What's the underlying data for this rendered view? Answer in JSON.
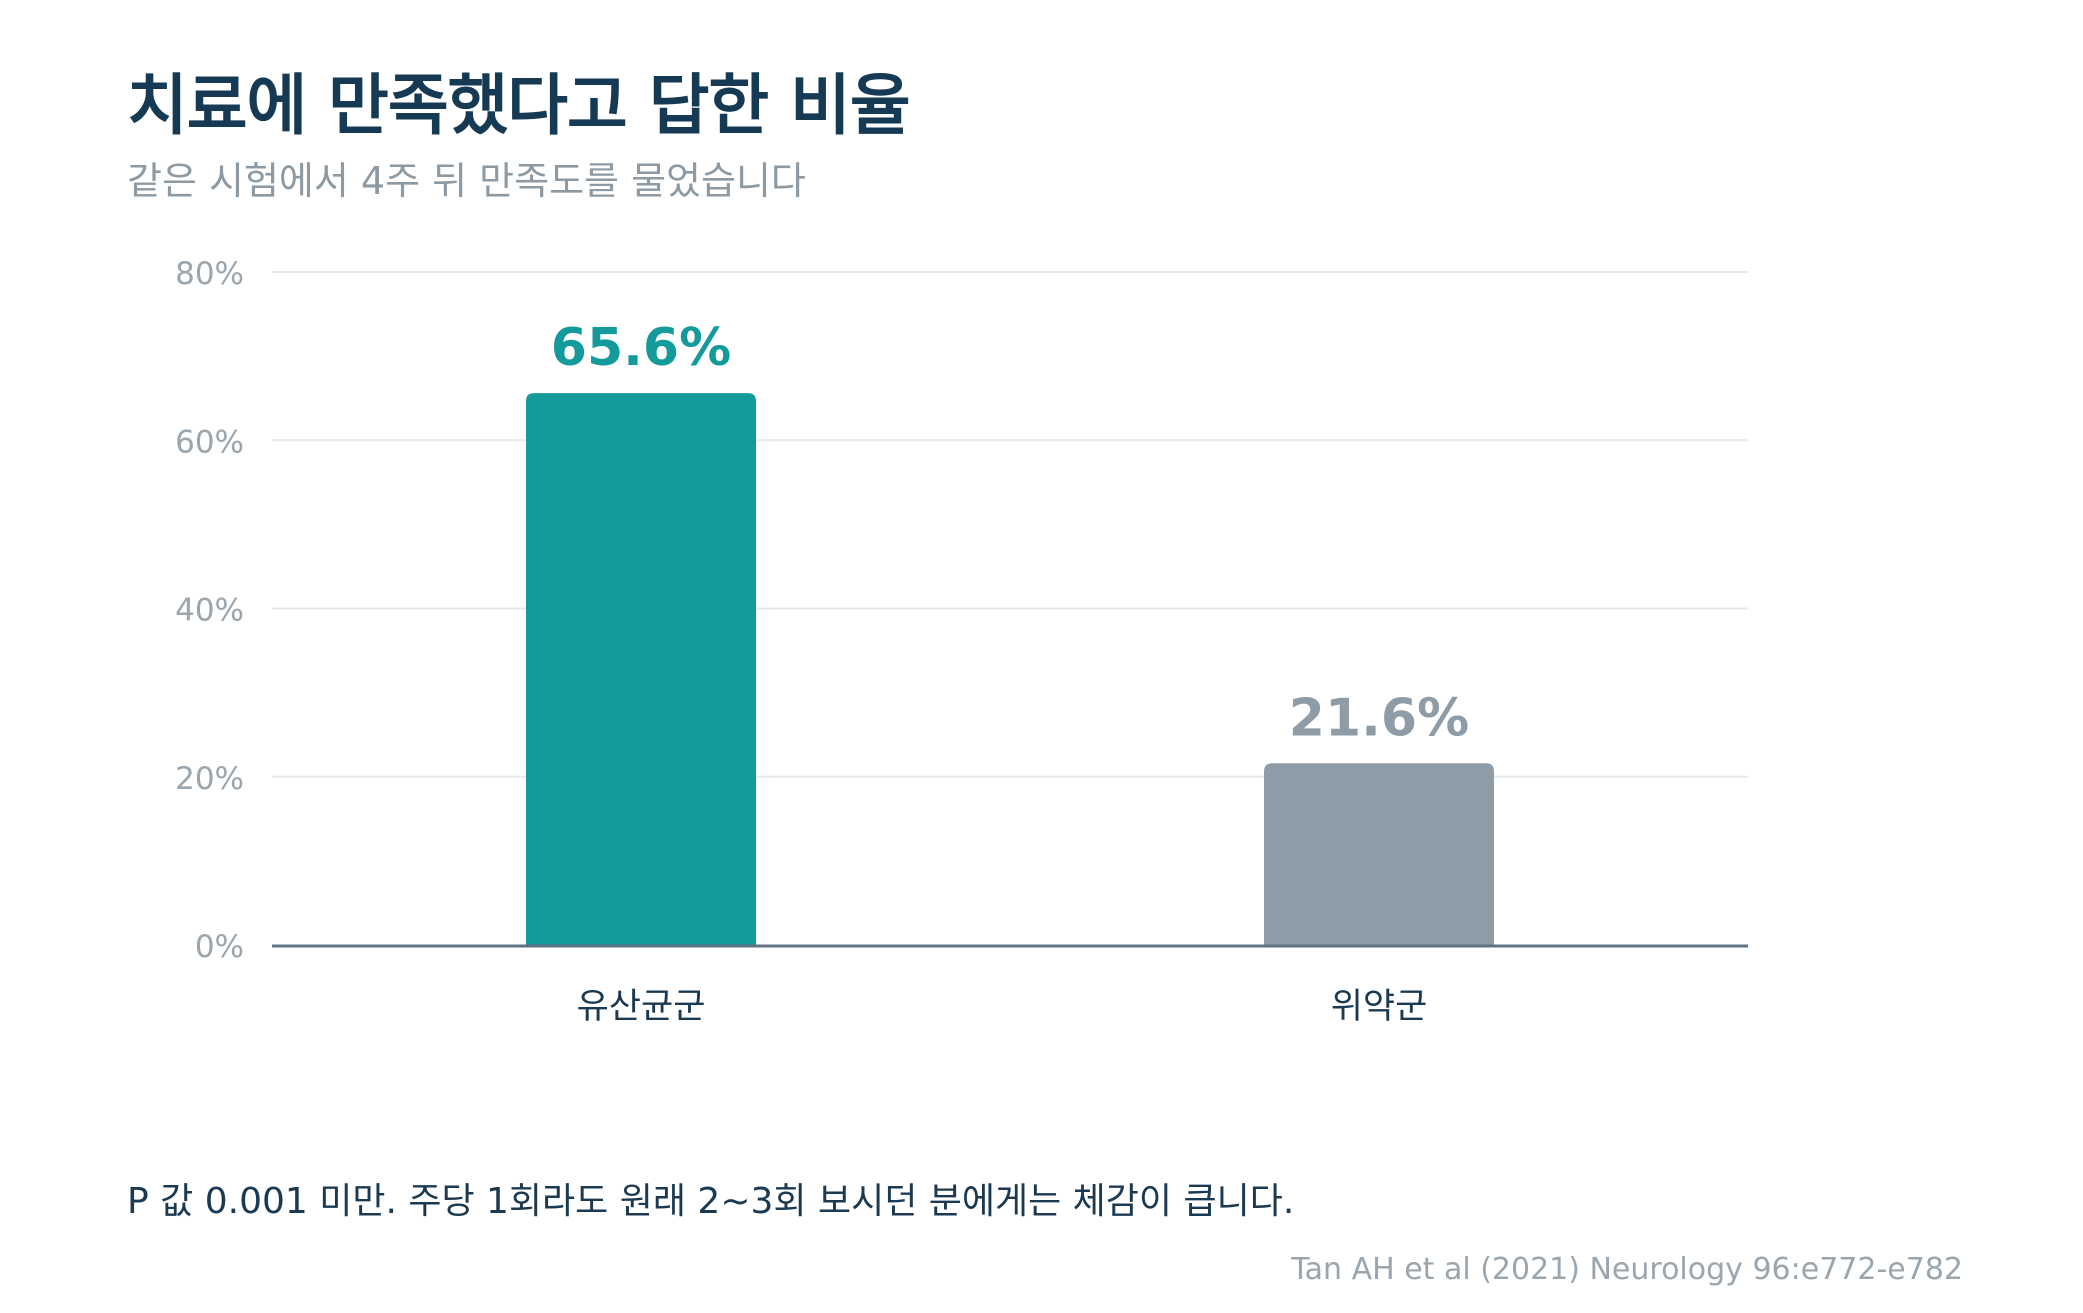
{
  "header": {
    "title": "치료에 만족했다고 답한 비율",
    "subtitle": "같은 시험에서 4주 뒤 만족도를 물었습니다"
  },
  "chart_data": {
    "type": "bar",
    "categories": [
      "유산균군",
      "위약군"
    ],
    "values": [
      65.6,
      21.6
    ],
    "value_labels": [
      "65.6%",
      "21.6%"
    ],
    "bar_colors": [
      "#159a9c",
      "#8e9ca7"
    ],
    "label_colors": [
      "#159a9c",
      "#8e9ca7"
    ],
    "ylim": [
      0,
      80
    ],
    "yticks": [
      0,
      20,
      40,
      60,
      80
    ],
    "ytick_labels": [
      "0%",
      "20%",
      "40%",
      "60%",
      "80%"
    ],
    "grid": true,
    "legend": "none"
  },
  "footer": {
    "note": "P 값 0.001 미만. 주당 1회라도 원래 2~3회 보시던 분에게는 체감이 큽니다.",
    "source": "Tan AH et al (2021) Neurology 96:e772-e782"
  }
}
